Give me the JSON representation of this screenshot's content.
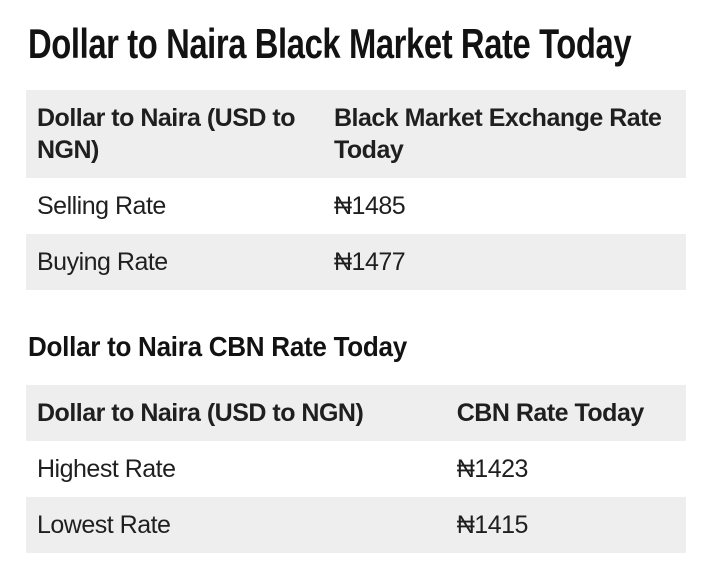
{
  "page": {
    "background": "#ffffff",
    "text_color": "#1f1f1f",
    "heading_color": "#121212",
    "stripe_color": "#eeeeee",
    "currency_symbol": "₦"
  },
  "sections": [
    {
      "heading": "Dollar to Naira Black Market Rate Today",
      "table": {
        "columns": [
          "Dollar to Naira (USD to NGN)",
          "Black Market Exchange Rate Today"
        ],
        "rows": [
          {
            "label": "Selling Rate",
            "value": "₦1485"
          },
          {
            "label": "Buying Rate",
            "value": "₦1477"
          }
        ]
      }
    },
    {
      "heading": "Dollar to Naira CBN Rate Today",
      "table": {
        "columns": [
          "Dollar to Naira (USD to NGN)",
          "CBN Rate Today"
        ],
        "rows": [
          {
            "label": "Highest Rate",
            "value": "₦1423"
          },
          {
            "label": "Lowest Rate",
            "value": "₦1415"
          }
        ]
      }
    }
  ]
}
